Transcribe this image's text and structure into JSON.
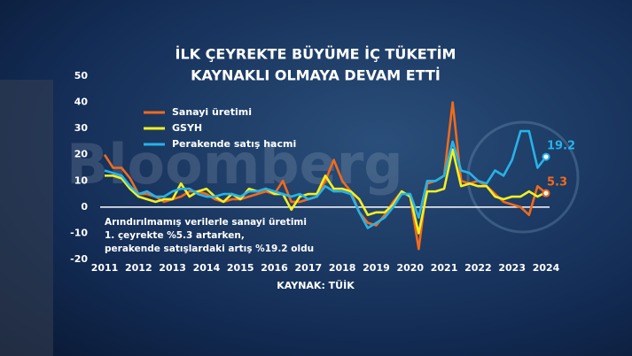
{
  "chart_data": {
    "type": "line",
    "title": [
      "İLK ÇEYREKTE BÜYÜME İÇ TÜKETİM",
      "KAYNAKLI OLMAYA DEVAM ETTİ"
    ],
    "watermark": "Bloomberg",
    "annotation": [
      "Arındırılmamış verilerle sanayi üretimi",
      "1. çeyrekte %5.3 artarken,",
      "perakende satışlardaki artış %19.2 oldu"
    ],
    "source": "KAYNAK: TÜİK",
    "x": [
      2011,
      2011.25,
      2011.5,
      2011.75,
      2012,
      2012.25,
      2012.5,
      2012.75,
      2013,
      2013.25,
      2013.5,
      2013.75,
      2014,
      2014.25,
      2014.5,
      2014.75,
      2015,
      2015.25,
      2015.5,
      2015.75,
      2016,
      2016.25,
      2016.5,
      2016.75,
      2017,
      2017.25,
      2017.5,
      2017.75,
      2018,
      2018.25,
      2018.5,
      2018.75,
      2019,
      2019.25,
      2019.5,
      2019.75,
      2020,
      2020.25,
      2020.5,
      2020.75,
      2021,
      2021.25,
      2021.5,
      2021.75,
      2022,
      2022.25,
      2022.5,
      2022.75,
      2023,
      2023.25,
      2023.5,
      2023.75,
      2024
    ],
    "series": [
      {
        "name": "Sanayi üretimi",
        "color": "#f26a1b",
        "values": [
          20,
          15,
          15,
          11,
          5,
          5,
          4,
          2,
          3,
          4,
          6,
          6,
          5,
          3,
          2,
          3,
          3,
          4,
          5,
          6,
          5,
          10,
          2,
          2,
          3,
          4,
          10,
          18,
          10,
          6,
          -2,
          -6,
          -7,
          -3,
          2,
          6,
          4,
          -16,
          9,
          10,
          12,
          40,
          10,
          9,
          10,
          8,
          5,
          2,
          1,
          0,
          -3,
          8,
          5.3
        ]
      },
      {
        "name": "GSYH",
        "color": "#f3f01e",
        "values": [
          12,
          12,
          11,
          7,
          4,
          3,
          2,
          3,
          3,
          9,
          4,
          6,
          7,
          4,
          2,
          5,
          3,
          7,
          6,
          7,
          5,
          5,
          -1,
          4,
          5,
          5,
          12,
          7,
          7,
          6,
          3,
          -3,
          -2,
          -2,
          1,
          6,
          4,
          -10,
          6,
          6,
          7,
          22,
          8,
          9,
          8,
          8,
          4,
          3,
          4,
          4,
          6,
          4,
          5.7
        ]
      },
      {
        "name": "Perakende satış hacmi",
        "color": "#27b3e8",
        "values": [
          14,
          13,
          12,
          8,
          5,
          6,
          4,
          4,
          6,
          7,
          7,
          5,
          4,
          4,
          5,
          5,
          4,
          6,
          6,
          7,
          6,
          5,
          4,
          5,
          3,
          4,
          8,
          6,
          6,
          5,
          -2,
          -8,
          -6,
          -4,
          0,
          5,
          5,
          -4,
          10,
          10,
          12,
          25,
          14,
          13,
          10,
          9,
          14,
          12,
          18,
          29,
          29,
          15,
          19.2
        ]
      }
    ],
    "xlim": [
      2011,
      2024
    ],
    "xticks": [
      2011,
      2012,
      2013,
      2014,
      2015,
      2016,
      2017,
      2018,
      2019,
      2020,
      2021,
      2022,
      2023,
      2024
    ],
    "ylim": [
      -20,
      50
    ],
    "yticks": [
      50,
      40,
      30,
      20,
      10,
      0,
      -10,
      -20
    ]
  }
}
